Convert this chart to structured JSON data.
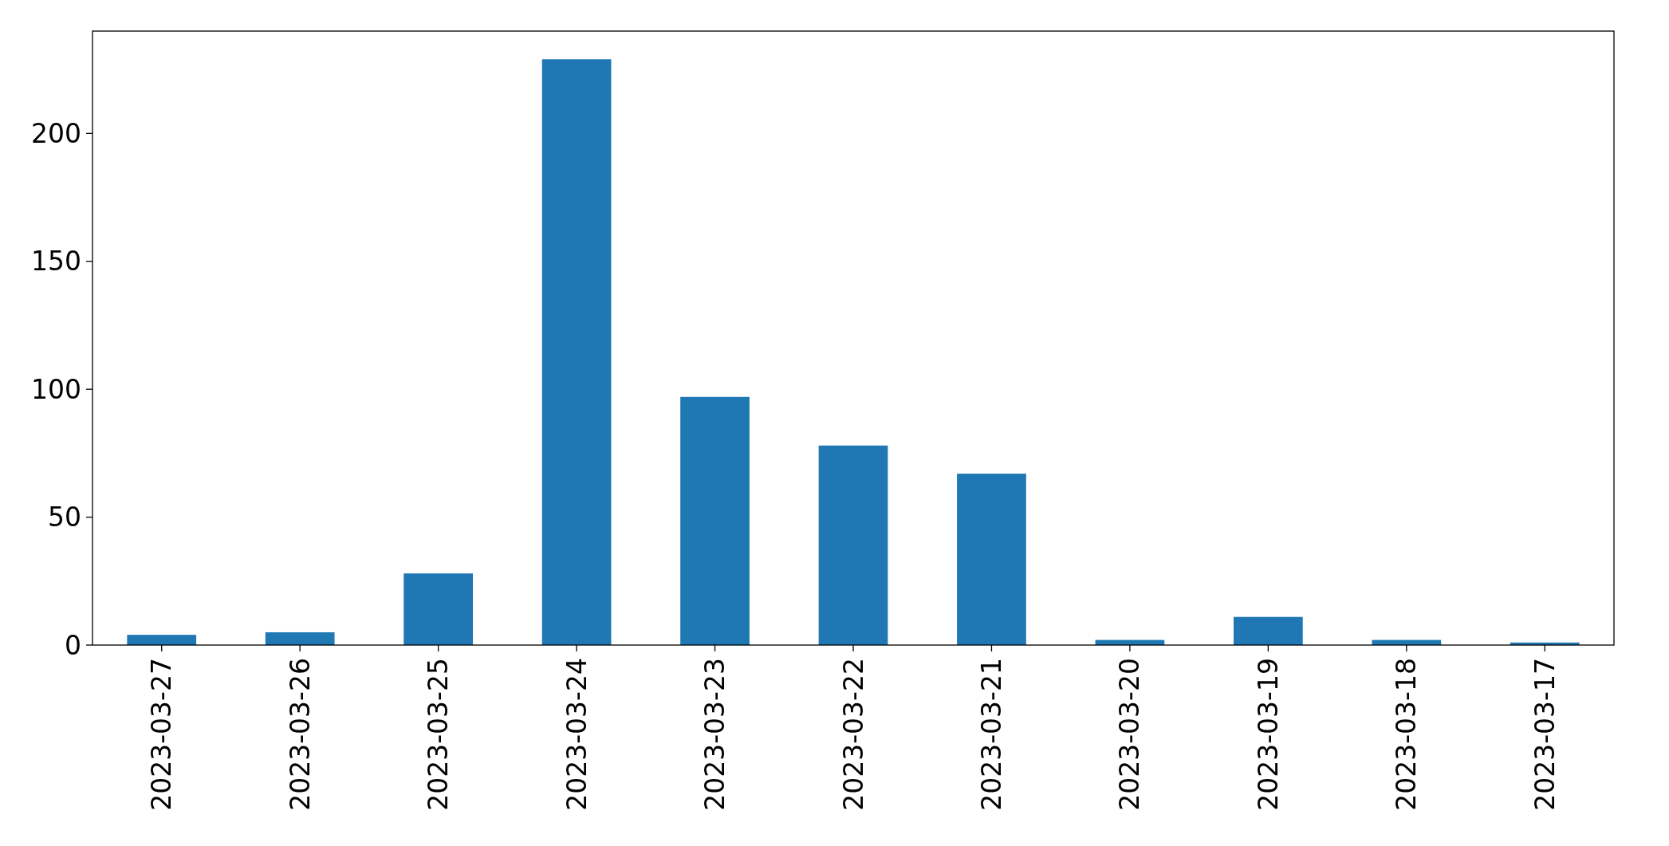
{
  "chart_data": {
    "type": "bar",
    "categories": [
      "2023-03-27",
      "2023-03-26",
      "2023-03-25",
      "2023-03-24",
      "2023-03-23",
      "2023-03-22",
      "2023-03-21",
      "2023-03-20",
      "2023-03-19",
      "2023-03-18",
      "2023-03-17"
    ],
    "values": [
      4,
      5,
      28,
      229,
      97,
      78,
      67,
      2,
      11,
      2,
      1
    ],
    "color": "#1f77b4",
    "ylim": [
      0,
      240
    ],
    "yticks": [
      0,
      50,
      100,
      150,
      200
    ],
    "grid": false
  }
}
